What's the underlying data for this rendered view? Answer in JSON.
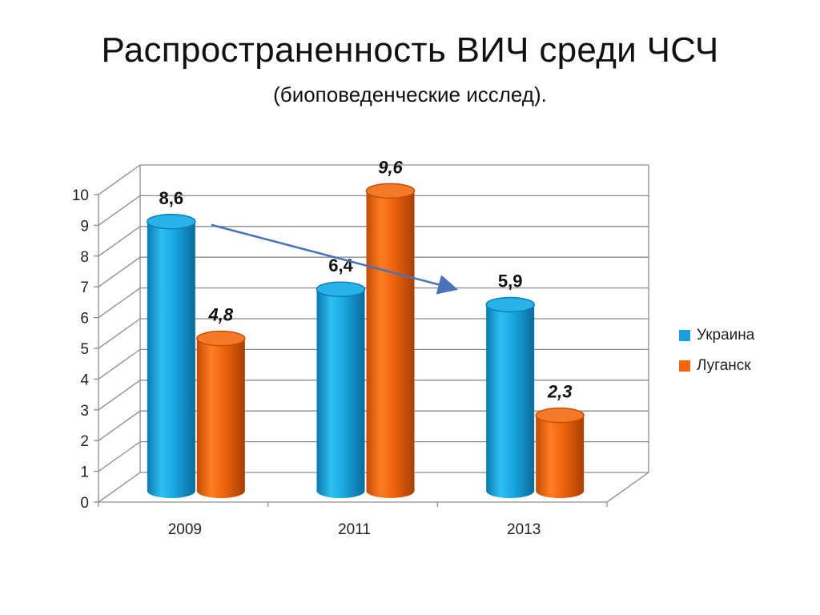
{
  "title": "Распространенность ВИЧ среди ЧСЧ",
  "subtitle": "(биоповеденческие исслед).",
  "colors": {
    "ukraine": "#1aa0dc",
    "lugansk": "#f0650e",
    "arrow": "#4a72b8",
    "grid": "#8c8c8c"
  },
  "chart_data": {
    "type": "bar",
    "categories": [
      "2009",
      "2011",
      "2013"
    ],
    "ylim": [
      0,
      10
    ],
    "yticks": [
      "0",
      "1",
      "2",
      "3",
      "4",
      "5",
      "6",
      "7",
      "8",
      "9",
      "10"
    ],
    "grid": true,
    "legend_position": "right",
    "series": [
      {
        "name": "Украина",
        "values": [
          8.6,
          6.4,
          5.9
        ],
        "labels": [
          "8,6",
          "6,4",
          "5,9"
        ],
        "label_style": "bold"
      },
      {
        "name": "Луганск",
        "values": [
          4.8,
          9.6,
          2.3
        ],
        "labels": [
          "4,8",
          "9,6",
          "2,3"
        ],
        "label_style": "bold-italic"
      }
    ],
    "annotation": "arrow from 2009 Украина to 2013 Украина"
  }
}
